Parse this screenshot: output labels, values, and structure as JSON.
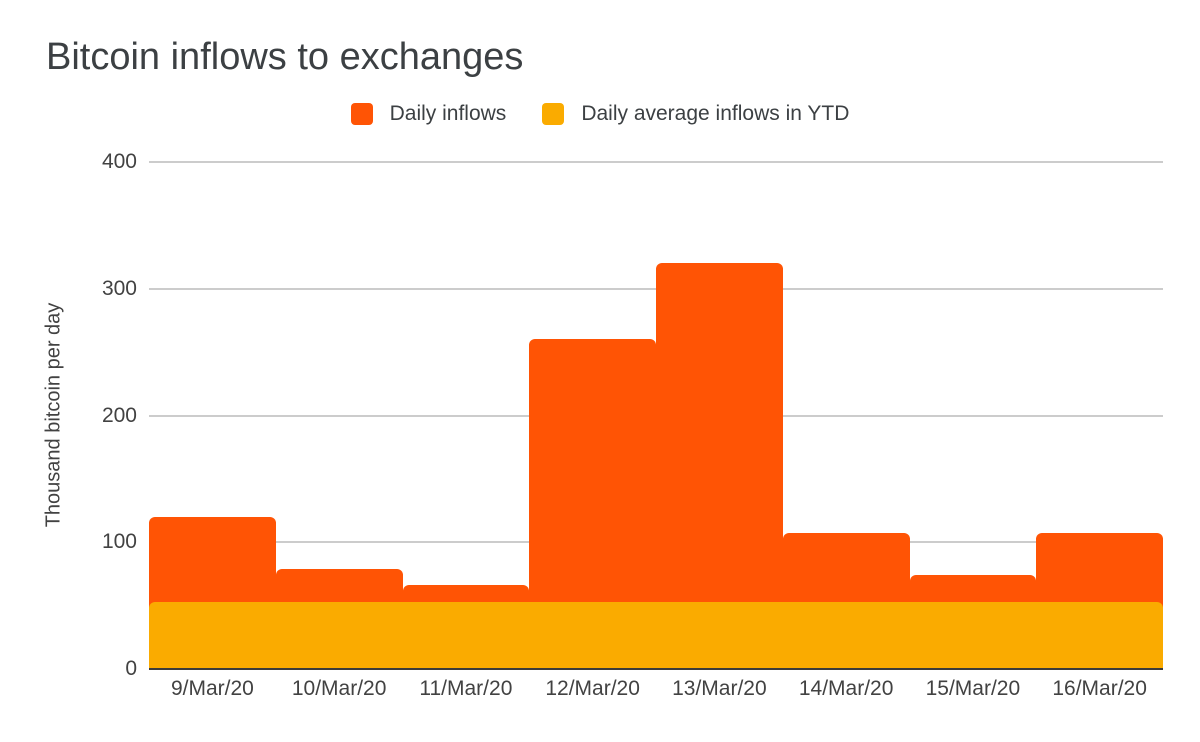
{
  "title": "Bitcoin inflows to exchanges",
  "legend": {
    "items": [
      {
        "label": "Daily inflows",
        "color": "#FF5405",
        "swatch_icon": "square-swatch"
      },
      {
        "label": "Daily average inflows in YTD",
        "color": "#FAAB00",
        "swatch_icon": "square-swatch"
      }
    ]
  },
  "y_axis": {
    "title": "Thousand bitcoin per day",
    "ticks": [
      0,
      100,
      200,
      300,
      400
    ],
    "max": 400
  },
  "x_axis": {
    "labels": [
      "9/Mar/20",
      "10/Mar/20",
      "11/Mar/20",
      "12/Mar/20",
      "13/Mar/20",
      "14/Mar/20",
      "15/Mar/20",
      "16/Mar/20"
    ]
  },
  "chart_data": {
    "type": "bar",
    "title": "Bitcoin inflows to exchanges",
    "xlabel": "",
    "ylabel": "Thousand bitcoin per day",
    "ylim": [
      0,
      400
    ],
    "grid": true,
    "legend_position": "top",
    "categories": [
      "9/Mar/20",
      "10/Mar/20",
      "11/Mar/20",
      "12/Mar/20",
      "13/Mar/20",
      "14/Mar/20",
      "15/Mar/20",
      "16/Mar/20"
    ],
    "series": [
      {
        "name": "Daily inflows",
        "color": "#FF5405",
        "values": [
          120,
          79,
          66,
          260,
          320,
          107,
          74,
          107
        ]
      },
      {
        "name": "Daily average inflows in YTD",
        "color": "#FAAB00",
        "values": [
          53,
          53,
          53,
          53,
          53,
          53,
          53,
          53
        ]
      }
    ],
    "average_band_value": 53
  },
  "colors": {
    "daily_inflows": "#FF5405",
    "daily_average": "#FAAB00",
    "gridline": "#cccccc",
    "axis_line": "#3b3b3b",
    "text": "#424242",
    "title_text": "#3c4043",
    "background": "#ffffff"
  }
}
